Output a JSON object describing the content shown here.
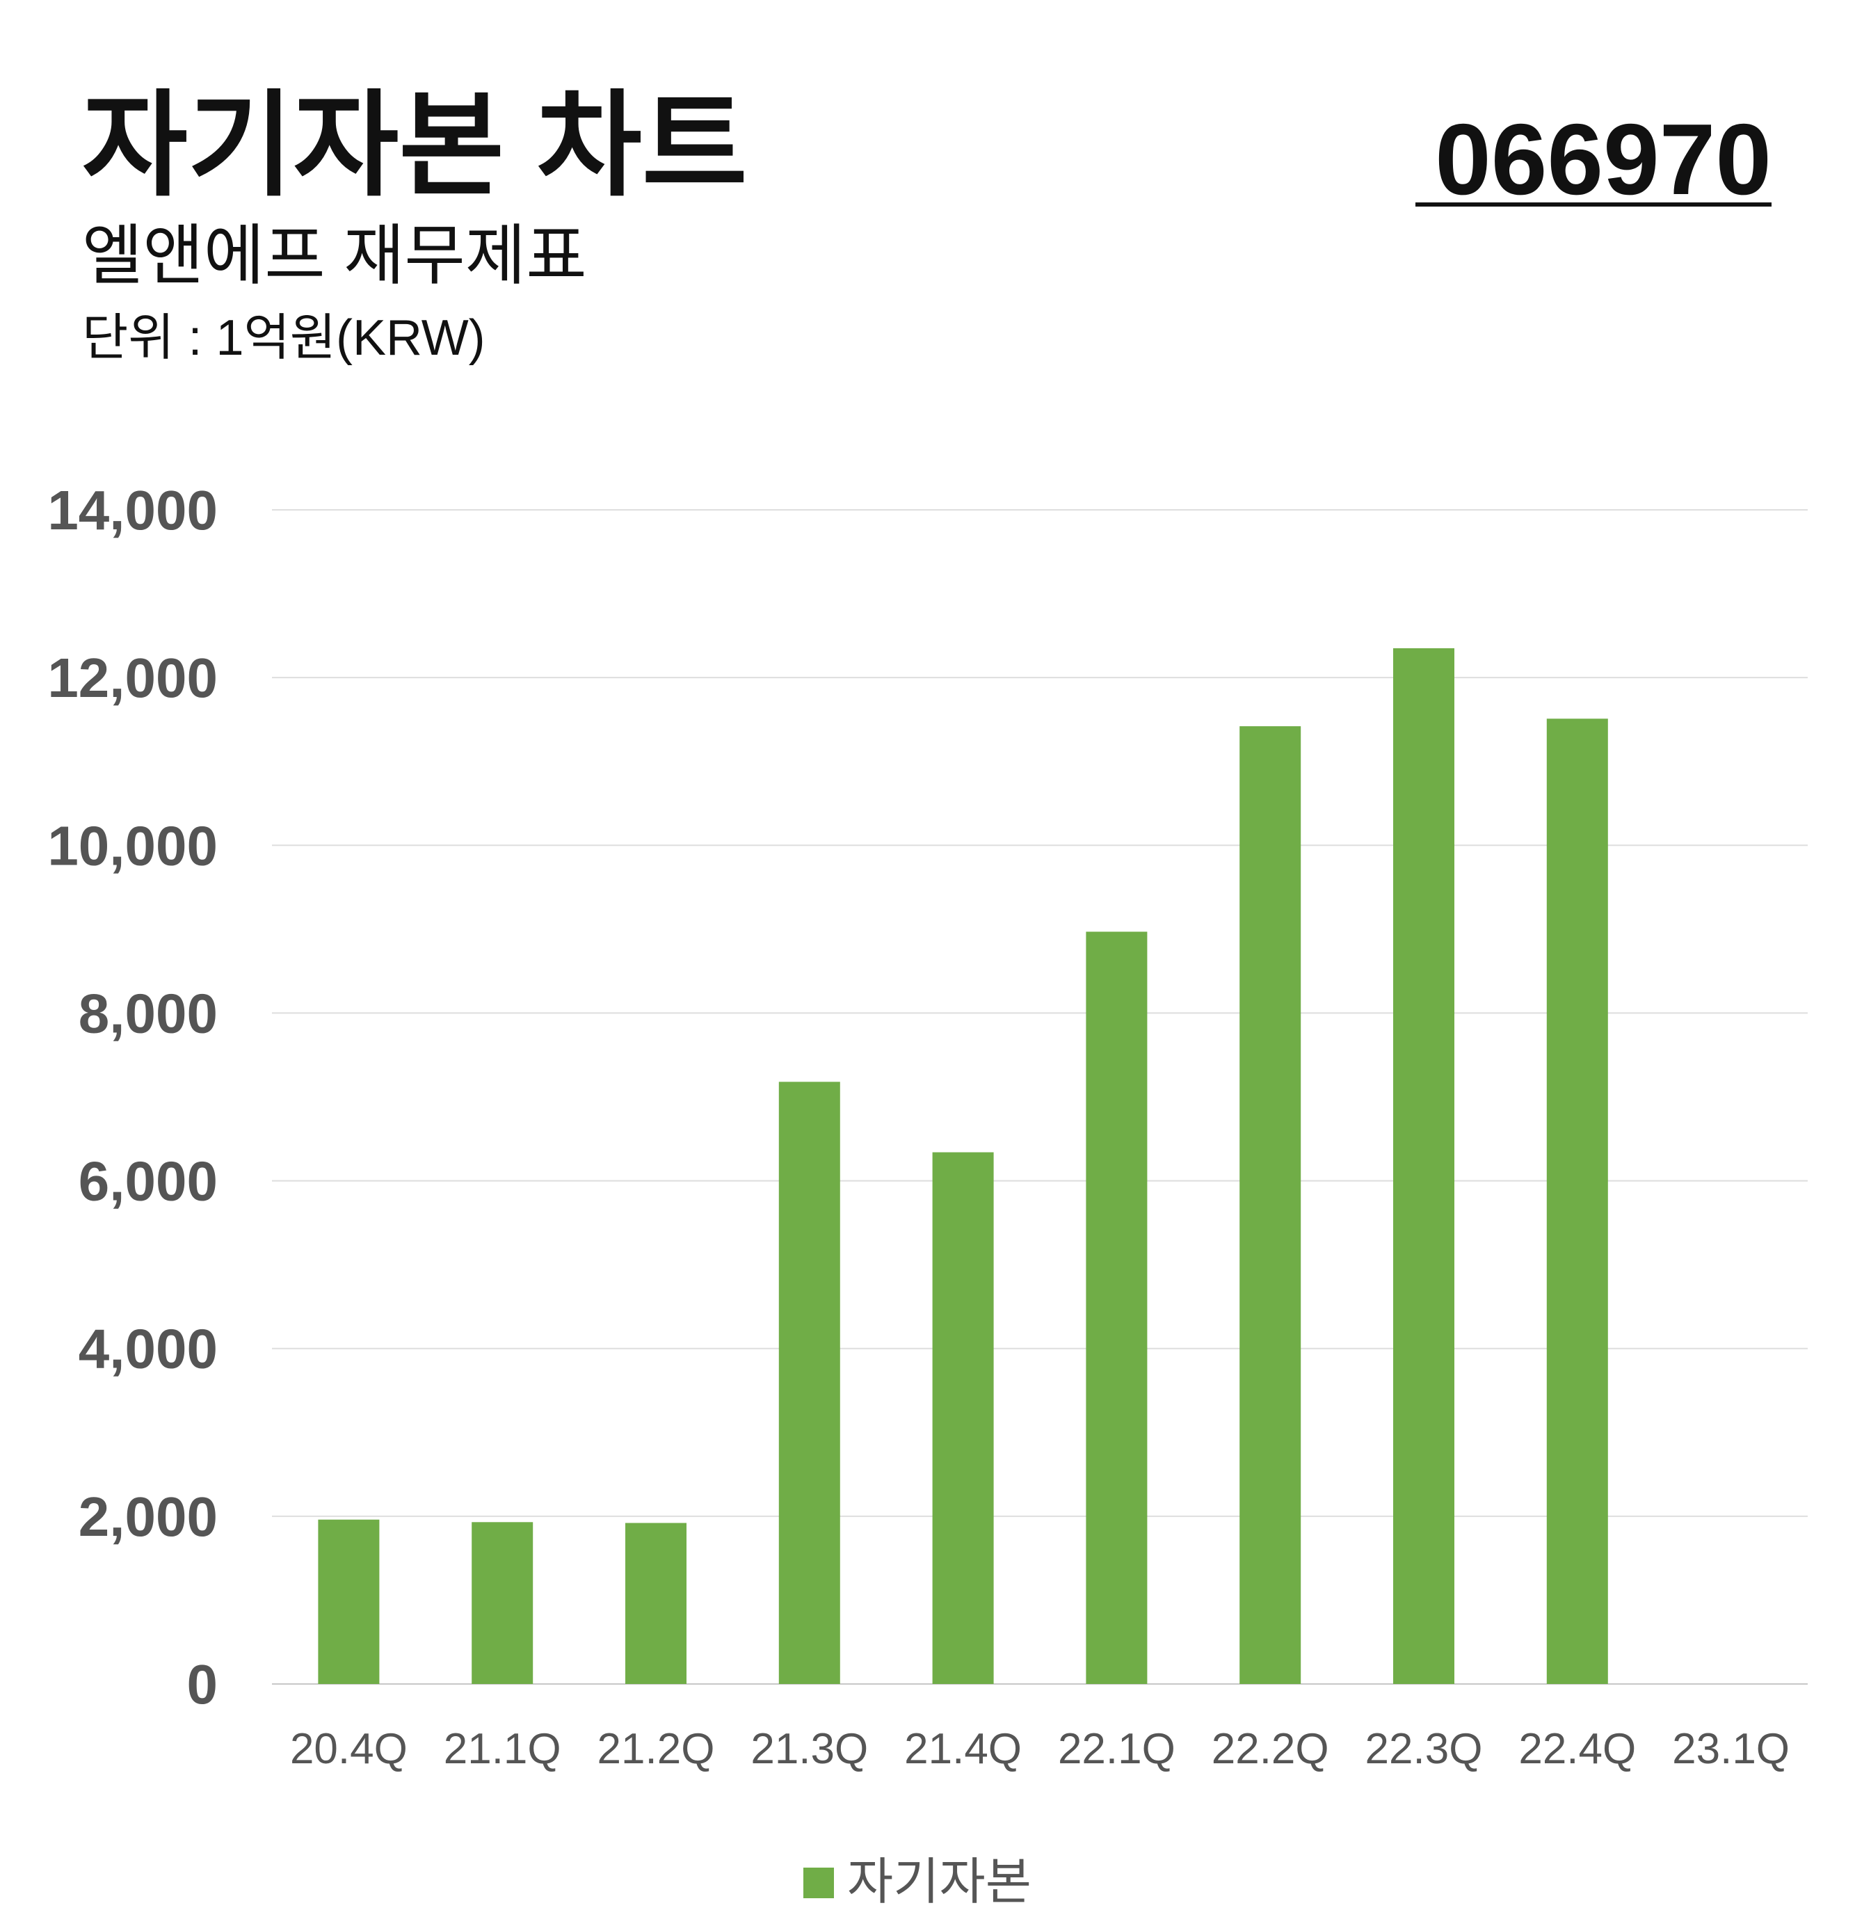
{
  "chart_data": {
    "type": "bar",
    "title": "자기자본 차트",
    "subtitle": "엘앤에프 재무제표",
    "unit_note": "단위 : 1억원(KRW)",
    "code": "066970",
    "categories": [
      "20.4Q",
      "21.1Q",
      "21.2Q",
      "21.3Q",
      "21.4Q",
      "22.1Q",
      "22.2Q",
      "22.3Q",
      "22.4Q",
      "23.1Q"
    ],
    "series": [
      {
        "name": "자기자본",
        "color": "#70ad47",
        "values": [
          1960,
          1930,
          1920,
          7180,
          6340,
          8970,
          11420,
          12350,
          11510,
          null
        ]
      }
    ],
    "ylim": [
      0,
      14000
    ],
    "yticks": [
      0,
      {
        "value": 2000,
        "label": "2,000"
      },
      {
        "value": 4000,
        "label": "4,000"
      },
      {
        "value": 6000,
        "label": "6,000"
      },
      {
        "value": 8000,
        "label": "8,000"
      },
      {
        "value": 10000,
        "label": "10,000"
      },
      {
        "value": 12000,
        "label": "12,000"
      },
      {
        "value": 14000,
        "label": "14,000"
      }
    ],
    "grid": true,
    "legend": "bottom"
  }
}
